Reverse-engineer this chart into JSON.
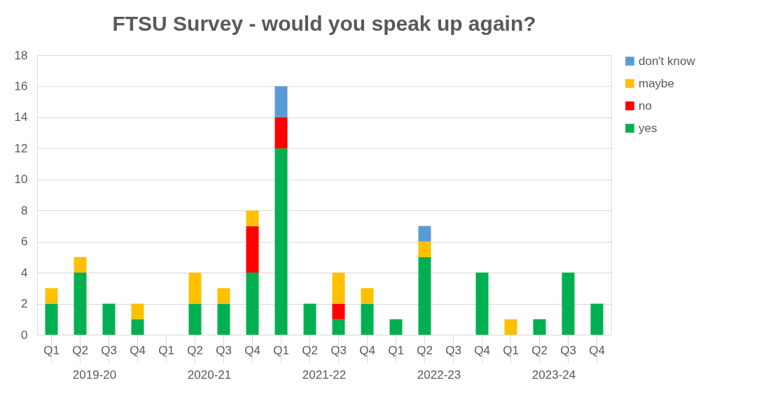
{
  "chart_data": {
    "type": "bar",
    "title": "FTSU Survey - would you speak up again?",
    "stacked": true,
    "categories": [
      "Q1",
      "Q2",
      "Q3",
      "Q4",
      "Q1",
      "Q2",
      "Q3",
      "Q4",
      "Q1",
      "Q2",
      "Q3",
      "Q4",
      "Q1",
      "Q2",
      "Q3",
      "Q4",
      "Q1",
      "Q2",
      "Q3",
      "Q4"
    ],
    "annotations": [
      "2019-20",
      "2020-21",
      "2021-22",
      "2022-23",
      "2023-24"
    ],
    "series": [
      {
        "name": "yes",
        "color": "#00b050",
        "values": [
          2,
          4,
          2,
          1,
          0,
          2,
          2,
          4,
          12,
          2,
          1,
          2,
          1,
          5,
          0,
          4,
          0,
          1,
          4,
          2
        ]
      },
      {
        "name": "no",
        "color": "#ff0000",
        "values": [
          0,
          0,
          0,
          0,
          0,
          0,
          0,
          3,
          2,
          0,
          1,
          0,
          0,
          0,
          0,
          0,
          0,
          0,
          0,
          0
        ]
      },
      {
        "name": "maybe",
        "color": "#ffc000",
        "values": [
          1,
          1,
          0,
          1,
          0,
          2,
          1,
          1,
          0,
          0,
          2,
          1,
          0,
          1,
          0,
          0,
          1,
          0,
          0,
          0
        ]
      },
      {
        "name": "don't know",
        "color": "#5b9bd5",
        "values": [
          0,
          0,
          0,
          0,
          0,
          0,
          0,
          0,
          2,
          0,
          0,
          0,
          0,
          1,
          0,
          0,
          0,
          0,
          0,
          0
        ]
      }
    ],
    "ylim": [
      0,
      18
    ],
    "yticks": [
      0,
      2,
      4,
      6,
      8,
      10,
      12,
      14,
      16,
      18
    ],
    "grid": "y",
    "legend": "right"
  }
}
